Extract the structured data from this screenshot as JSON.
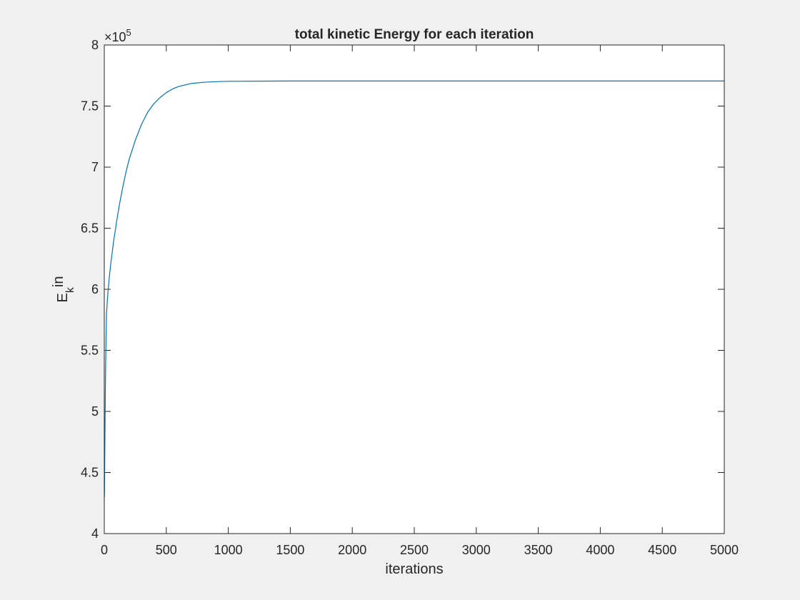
{
  "chart_data": {
    "type": "line",
    "title": "total kinetic Energy for each iteration",
    "xlabel": "iterations",
    "ylabel": {
      "base": "E",
      "subscript": "k",
      "suffix": "in"
    },
    "xlim": [
      0,
      5000
    ],
    "ylim": [
      400000,
      800000
    ],
    "y_exponent_label": {
      "base": "×10",
      "exponent": "5"
    },
    "x_ticks": [
      {
        "value": 0,
        "label": "0"
      },
      {
        "value": 500,
        "label": "500"
      },
      {
        "value": 1000,
        "label": "1000"
      },
      {
        "value": 1500,
        "label": "1500"
      },
      {
        "value": 2000,
        "label": "2000"
      },
      {
        "value": 2500,
        "label": "2500"
      },
      {
        "value": 3000,
        "label": "3000"
      },
      {
        "value": 3500,
        "label": "3500"
      },
      {
        "value": 4000,
        "label": "4000"
      },
      {
        "value": 4500,
        "label": "4500"
      },
      {
        "value": 5000,
        "label": "5000"
      }
    ],
    "y_ticks": [
      {
        "value": 400000,
        "label": "4"
      },
      {
        "value": 450000,
        "label": "4.5"
      },
      {
        "value": 500000,
        "label": "5"
      },
      {
        "value": 550000,
        "label": "5.5"
      },
      {
        "value": 600000,
        "label": "6"
      },
      {
        "value": 650000,
        "label": "6.5"
      },
      {
        "value": 700000,
        "label": "7"
      },
      {
        "value": 750000,
        "label": "7.5"
      },
      {
        "value": 800000,
        "label": "8"
      }
    ],
    "grid": false,
    "legend": "none",
    "series": [
      {
        "color": "#0072bd",
        "x": [
          1,
          5,
          10,
          15,
          18,
          20,
          25,
          30,
          40,
          50,
          60,
          75,
          100,
          125,
          150,
          175,
          200,
          250,
          300,
          350,
          400,
          450,
          500,
          550,
          600,
          700,
          800,
          900,
          1000,
          1500,
          2000,
          3000,
          4000,
          5000
        ],
        "y": [
          430000,
          480000,
          530000,
          565000,
          581000,
          583000,
          591000,
          598000,
          609000,
          619000,
          627000,
          639000,
          656000,
          671000,
          684000,
          696000,
          706000,
          722000,
          735000,
          745000,
          752000,
          757000,
          761000,
          764000,
          766000,
          768500,
          769500,
          770000,
          770300,
          770500,
          770500,
          770500,
          770500,
          770500
        ]
      }
    ]
  }
}
